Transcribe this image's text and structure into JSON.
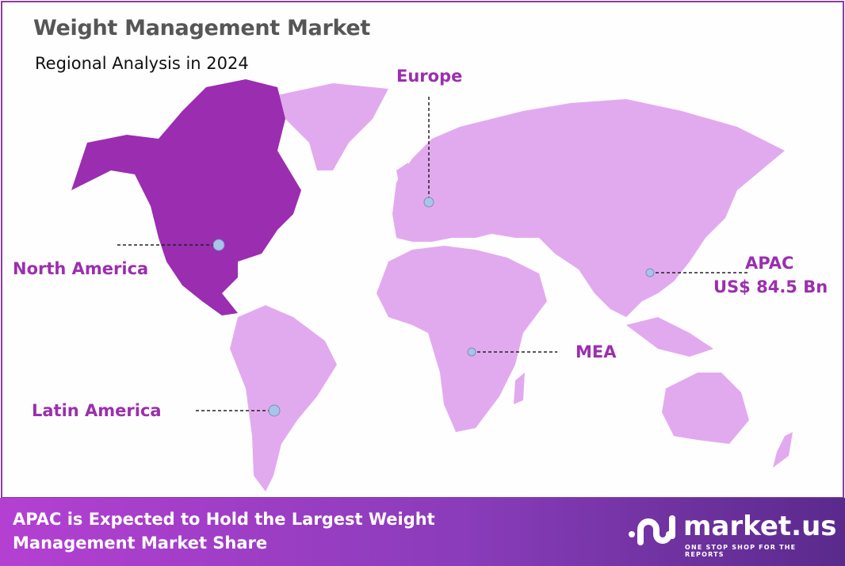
{
  "header": {
    "title": "Weight Management Market",
    "subtitle": "Regional Analysis in 2024"
  },
  "regions": [
    {
      "name": "Europe"
    },
    {
      "name": "North America",
      "highlighted": true
    },
    {
      "name": "APAC",
      "value": "US$ 84.5 Bn"
    },
    {
      "name": "MEA"
    },
    {
      "name": "Latin America"
    }
  ],
  "colors": {
    "highlight": "#9a2db0",
    "base": "#e2aaee",
    "label": "#9b2fae",
    "marker": "#a9c4ea"
  },
  "footer": {
    "line1": "APAC is Expected to Hold the Largest Weight",
    "line2": "Management Market Share"
  },
  "logo": {
    "name": "market.us",
    "tagline": "ONE STOP SHOP FOR THE REPORTS"
  }
}
